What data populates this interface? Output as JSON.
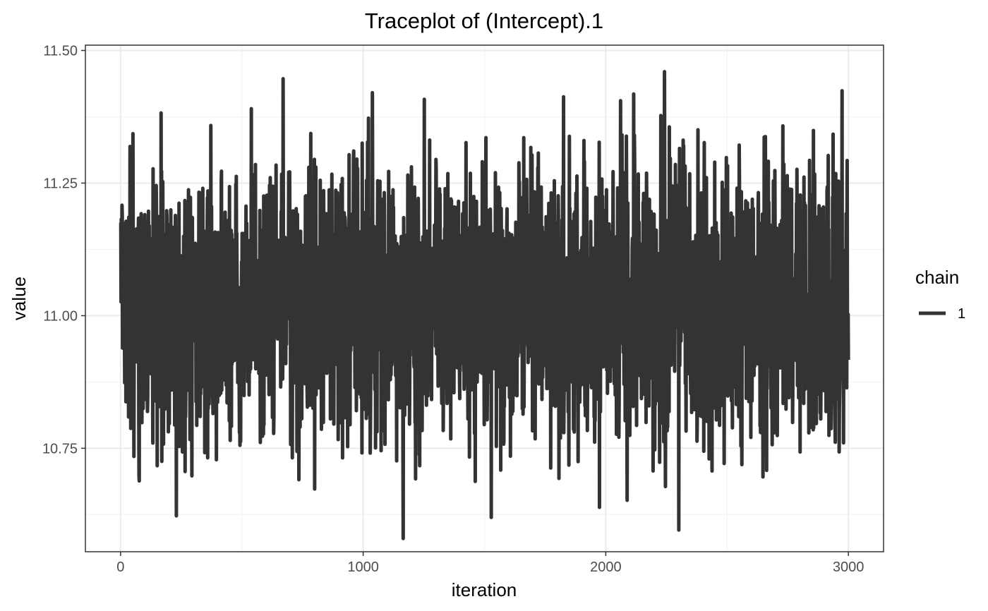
{
  "chart_data": {
    "type": "line",
    "title": "Traceplot of  (Intercept).1",
    "xlabel": "iteration",
    "ylabel": "value",
    "xlim": [
      -145,
      3145
    ],
    "ylim": [
      10.555,
      11.51
    ],
    "x_ticks": [
      0,
      1000,
      2000,
      3000
    ],
    "x_tick_labels": [
      "0",
      "1000",
      "2000",
      "3000"
    ],
    "y_ticks": [
      10.75,
      11.0,
      11.25,
      11.5
    ],
    "y_tick_labels": [
      "10.75",
      "11.00",
      "11.25",
      "11.50"
    ],
    "grid": true,
    "legend": {
      "title": "chain",
      "placement": "right",
      "entries": [
        "1"
      ]
    },
    "series": [
      {
        "name": "1",
        "color": "#333333",
        "n_iterations": 3000,
        "x_start": 1,
        "x_step": 1,
        "mean": 11.02,
        "sd": 0.13,
        "min": 10.58,
        "max": 11.46
      }
    ]
  }
}
